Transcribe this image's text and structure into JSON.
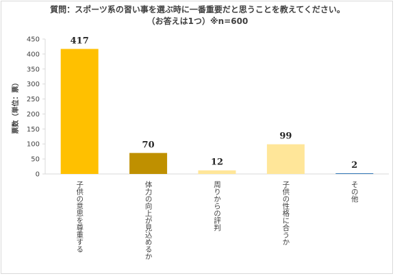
{
  "chart_data": {
    "type": "bar",
    "title": "質問：スポーツ系の習い事を選ぶ時に一番重要だと思うことを教えてください。",
    "subtitle": "（お答えは1つ）※n=600",
    "ylabel": "票数（単位：票）",
    "xlabel": "",
    "ylim": [
      0,
      450
    ],
    "yticks": [
      0,
      50,
      100,
      150,
      200,
      250,
      300,
      350,
      400,
      450
    ],
    "grid": false,
    "legend": "none",
    "categories": [
      "子供の意思を尊重する",
      "体力の向上が見込めるか",
      "周りからの評判",
      "子供の性格に合うか",
      "その他"
    ],
    "values": [
      417,
      70,
      12,
      99,
      2
    ],
    "colors": [
      "#FFC000",
      "#BF9000",
      "#FFE699",
      "#FFE699",
      "#2E75B6"
    ]
  }
}
